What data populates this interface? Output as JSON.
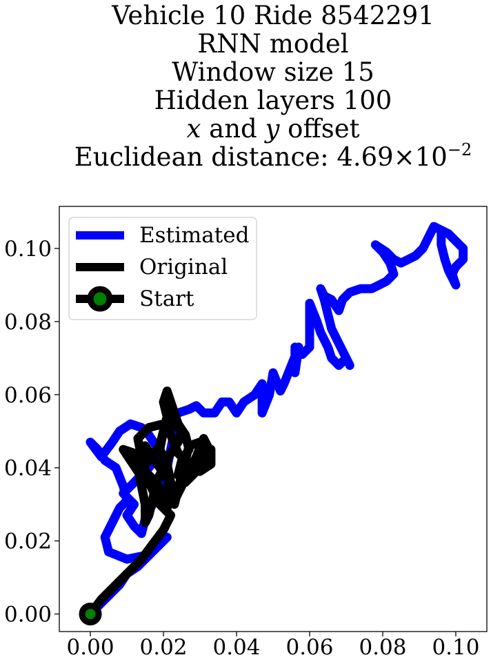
{
  "chart_data": {
    "type": "line",
    "title": {
      "line1": "Vehicle 10 Ride 8542291",
      "line2": "RNN model",
      "line3": "Window size 15",
      "line4": "Hidden layers 100",
      "line5_x": "x",
      "line5_and": " and ",
      "line5_y": "y",
      "line5_rest": " offset",
      "line6_prefix": "Euclidean distance: 4.69",
      "line6_times": "×",
      "line6_base": "10",
      "line6_exp": "−2"
    },
    "xlabel": "",
    "ylabel": "",
    "xlim": [
      -0.0085,
      0.1085
    ],
    "ylim": [
      -0.0048,
      0.1115
    ],
    "xticks": [
      "0.00",
      "0.02",
      "0.04",
      "0.06",
      "0.08",
      "0.10"
    ],
    "yticks": [
      "0.00",
      "0.02",
      "0.04",
      "0.06",
      "0.08",
      "0.10"
    ],
    "grid": false,
    "legend_position": "upper-left",
    "series": [
      {
        "name": "Estimated",
        "color": "#0000ff",
        "points": [
          [
            0.0,
            0.0
          ],
          [
            0.004,
            0.004
          ],
          [
            0.008,
            0.008
          ],
          [
            0.01,
            0.011
          ],
          [
            0.013,
            0.013
          ],
          [
            0.016,
            0.016
          ],
          [
            0.019,
            0.019
          ],
          [
            0.021,
            0.021
          ],
          [
            0.018,
            0.018
          ],
          [
            0.015,
            0.016
          ],
          [
            0.01,
            0.015
          ],
          [
            0.005,
            0.017
          ],
          [
            0.004,
            0.021
          ],
          [
            0.006,
            0.025
          ],
          [
            0.008,
            0.029
          ],
          [
            0.01,
            0.031
          ],
          [
            0.009,
            0.035
          ],
          [
            0.007,
            0.04
          ],
          [
            0.004,
            0.042
          ],
          [
            0.002,
            0.045
          ],
          [
            0.0,
            0.047
          ],
          [
            0.003,
            0.043
          ],
          [
            0.006,
            0.047
          ],
          [
            0.008,
            0.05
          ],
          [
            0.011,
            0.052
          ],
          [
            0.014,
            0.051
          ],
          [
            0.016,
            0.049
          ],
          [
            0.018,
            0.046
          ],
          [
            0.019,
            0.044
          ],
          [
            0.016,
            0.04
          ],
          [
            0.012,
            0.036
          ],
          [
            0.009,
            0.033
          ],
          [
            0.012,
            0.03
          ],
          [
            0.01,
            0.027
          ],
          [
            0.012,
            0.024
          ],
          [
            0.014,
            0.022
          ],
          [
            0.015,
            0.026
          ],
          [
            0.017,
            0.03
          ],
          [
            0.019,
            0.035
          ],
          [
            0.021,
            0.04
          ],
          [
            0.022,
            0.045
          ],
          [
            0.023,
            0.05
          ],
          [
            0.022,
            0.052
          ],
          [
            0.024,
            0.055
          ],
          [
            0.027,
            0.056
          ],
          [
            0.029,
            0.057
          ],
          [
            0.031,
            0.055
          ],
          [
            0.034,
            0.055
          ],
          [
            0.036,
            0.058
          ],
          [
            0.038,
            0.058
          ],
          [
            0.04,
            0.055
          ],
          [
            0.042,
            0.058
          ],
          [
            0.045,
            0.06
          ],
          [
            0.047,
            0.063
          ],
          [
            0.047,
            0.055
          ],
          [
            0.049,
            0.06
          ],
          [
            0.05,
            0.066
          ],
          [
            0.052,
            0.061
          ],
          [
            0.053,
            0.063
          ],
          [
            0.055,
            0.068
          ],
          [
            0.057,
            0.073
          ],
          [
            0.056,
            0.066
          ],
          [
            0.056,
            0.073
          ],
          [
            0.058,
            0.071
          ],
          [
            0.06,
            0.073
          ],
          [
            0.06,
            0.079
          ],
          [
            0.06,
            0.085
          ],
          [
            0.062,
            0.08
          ],
          [
            0.063,
            0.077
          ],
          [
            0.065,
            0.073
          ],
          [
            0.066,
            0.07
          ],
          [
            0.068,
            0.068
          ],
          [
            0.07,
            0.07
          ],
          [
            0.071,
            0.068
          ],
          [
            0.068,
            0.074
          ],
          [
            0.066,
            0.078
          ],
          [
            0.065,
            0.082
          ],
          [
            0.064,
            0.086
          ],
          [
            0.063,
            0.089
          ],
          [
            0.064,
            0.087
          ],
          [
            0.066,
            0.086
          ],
          [
            0.068,
            0.083
          ],
          [
            0.069,
            0.086
          ],
          [
            0.071,
            0.088
          ],
          [
            0.074,
            0.089
          ],
          [
            0.077,
            0.089
          ],
          [
            0.079,
            0.09
          ],
          [
            0.081,
            0.091
          ],
          [
            0.083,
            0.093
          ],
          [
            0.082,
            0.096
          ],
          [
            0.08,
            0.099
          ],
          [
            0.078,
            0.101
          ],
          [
            0.081,
            0.099
          ],
          [
            0.083,
            0.097
          ],
          [
            0.085,
            0.096
          ],
          [
            0.087,
            0.097
          ],
          [
            0.089,
            0.098
          ],
          [
            0.091,
            0.1
          ],
          [
            0.093,
            0.104
          ],
          [
            0.094,
            0.106
          ],
          [
            0.096,
            0.105
          ],
          [
            0.098,
            0.104
          ],
          [
            0.1,
            0.102
          ],
          [
            0.102,
            0.1
          ],
          [
            0.102,
            0.097
          ],
          [
            0.1,
            0.095
          ],
          [
            0.099,
            0.093
          ],
          [
            0.1,
            0.09
          ],
          [
            0.098,
            0.094
          ],
          [
            0.097,
            0.097
          ],
          [
            0.096,
            0.101
          ],
          [
            0.096,
            0.105
          ]
        ]
      },
      {
        "name": "Original",
        "color": "#000000",
        "points": [
          [
            0.0,
            0.0
          ],
          [
            0.003,
            0.004
          ],
          [
            0.006,
            0.007
          ],
          [
            0.01,
            0.011
          ],
          [
            0.014,
            0.015
          ],
          [
            0.017,
            0.019
          ],
          [
            0.02,
            0.023
          ],
          [
            0.022,
            0.027
          ],
          [
            0.019,
            0.03
          ],
          [
            0.017,
            0.034
          ],
          [
            0.015,
            0.038
          ],
          [
            0.014,
            0.043
          ],
          [
            0.013,
            0.048
          ],
          [
            0.016,
            0.051
          ],
          [
            0.02,
            0.052
          ],
          [
            0.023,
            0.052
          ],
          [
            0.025,
            0.05
          ],
          [
            0.024,
            0.047
          ],
          [
            0.022,
            0.044
          ],
          [
            0.02,
            0.04
          ],
          [
            0.018,
            0.036
          ],
          [
            0.017,
            0.031
          ],
          [
            0.016,
            0.027
          ],
          [
            0.015,
            0.025
          ],
          [
            0.015,
            0.03
          ],
          [
            0.014,
            0.035
          ],
          [
            0.013,
            0.04
          ],
          [
            0.012,
            0.044
          ],
          [
            0.009,
            0.045
          ],
          [
            0.011,
            0.042
          ],
          [
            0.013,
            0.039
          ],
          [
            0.016,
            0.042
          ],
          [
            0.019,
            0.046
          ],
          [
            0.02,
            0.05
          ],
          [
            0.021,
            0.054
          ],
          [
            0.02,
            0.05
          ],
          [
            0.019,
            0.045
          ],
          [
            0.021,
            0.041
          ],
          [
            0.022,
            0.036
          ],
          [
            0.023,
            0.031
          ],
          [
            0.025,
            0.035
          ],
          [
            0.027,
            0.039
          ],
          [
            0.029,
            0.043
          ],
          [
            0.031,
            0.048
          ],
          [
            0.032,
            0.046
          ],
          [
            0.031,
            0.042
          ],
          [
            0.029,
            0.039
          ],
          [
            0.026,
            0.036
          ],
          [
            0.024,
            0.038
          ],
          [
            0.025,
            0.042
          ],
          [
            0.027,
            0.045
          ],
          [
            0.026,
            0.049
          ],
          [
            0.024,
            0.052
          ],
          [
            0.023,
            0.055
          ],
          [
            0.022,
            0.058
          ],
          [
            0.021,
            0.061
          ],
          [
            0.02,
            0.058
          ],
          [
            0.021,
            0.054
          ],
          [
            0.022,
            0.049
          ],
          [
            0.024,
            0.044
          ],
          [
            0.027,
            0.041
          ],
          [
            0.03,
            0.039
          ],
          [
            0.033,
            0.041
          ],
          [
            0.033,
            0.045
          ],
          [
            0.03,
            0.047
          ],
          [
            0.027,
            0.046
          ],
          [
            0.026,
            0.042
          ],
          [
            0.025,
            0.038
          ],
          [
            0.024,
            0.034
          ],
          [
            0.023,
            0.03
          ],
          [
            0.022,
            0.033
          ],
          [
            0.021,
            0.037
          ],
          [
            0.019,
            0.04
          ],
          [
            0.017,
            0.043
          ],
          [
            0.015,
            0.046
          ],
          [
            0.014,
            0.043
          ],
          [
            0.015,
            0.039
          ],
          [
            0.018,
            0.036
          ],
          [
            0.02,
            0.033
          ],
          [
            0.021,
            0.029
          ],
          [
            0.022,
            0.032
          ]
        ]
      }
    ],
    "start_point": {
      "name": "Start",
      "x": 0.0,
      "y": 0.0,
      "outer_color": "#000000",
      "inner_color": "#008000"
    }
  }
}
